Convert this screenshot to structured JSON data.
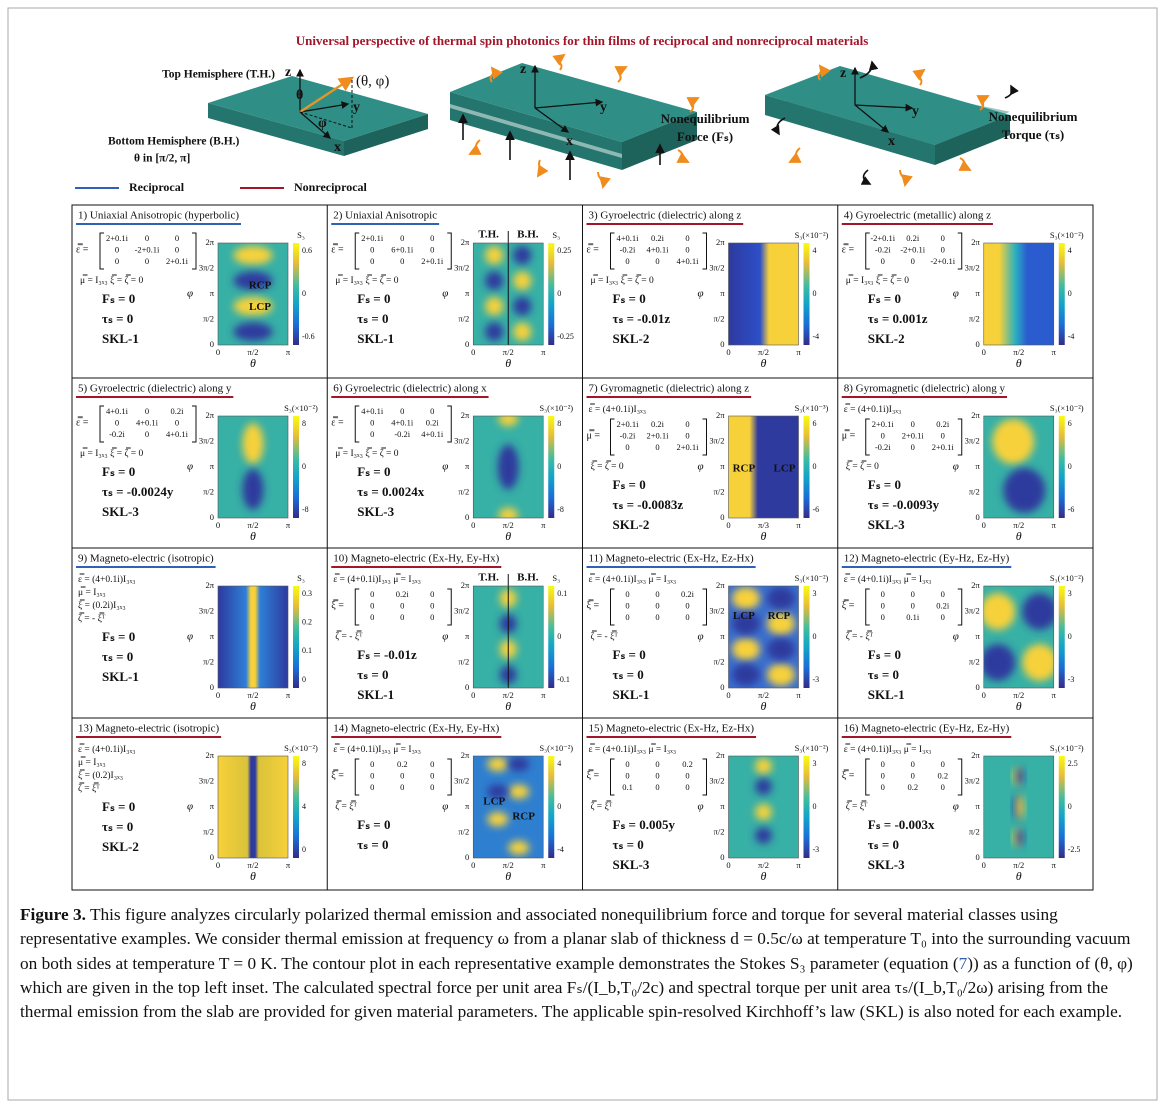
{
  "title": "Universal perspective of thermal spin photonics for thin films of reciprocal and nonreciprocal materials",
  "illustration": {
    "top_hemisphere": "Top Hemisphere (T.H.)",
    "bottom_hemisphere": "Bottom Hemisphere (B.H.)",
    "theta_range": "θ in [π/2, π]",
    "axis_z": "z",
    "axis_y": "y",
    "axis_x": "x",
    "theta": "θ",
    "phi": "φ",
    "direction": "(θ, φ)",
    "force_1": "Nonequilibrium",
    "force_2": "Force (Fₛ)",
    "torque_1": "Nonequilibrium",
    "torque_2": "Torque (τₛ)"
  },
  "legend": [
    {
      "name": "Reciprocal",
      "color": "#2f62b4"
    },
    {
      "name": "Nonreciprocal",
      "color": "#a3162a"
    }
  ],
  "panels": [
    {
      "title": "1) Uniaxial Anisotropic (hyperbolic)",
      "underline_color": "#2f62b4",
      "matrix": {
        "lhs": "ε̿ =",
        "rows": [
          [
            "2+0.1i",
            "0",
            "0"
          ],
          [
            "0",
            "-2+0.1i",
            "0"
          ],
          [
            "0",
            "0",
            "2+0.1i"
          ]
        ]
      },
      "post": [
        "μ̿ = I₃ₓ₃   ξ̿ = ζ̿ = 0"
      ],
      "results": [
        "Fₛ = 0",
        "τₛ = 0",
        "SKL-1"
      ],
      "plot": {
        "cbar_label": "S₃",
        "cbar_ticks": [
          "0.6",
          "0",
          "-0.6"
        ],
        "xticks": [
          "0",
          "π/2",
          "π"
        ],
        "yticks": [
          "0",
          "π/2",
          "π",
          "3π/2",
          "2π"
        ],
        "xlabel": "θ",
        "ylabel": "φ",
        "annotations": [
          "RCP",
          "LCP"
        ]
      }
    },
    {
      "title": "2) Uniaxial Anisotropic",
      "underline_color": "#2f62b4",
      "matrix": {
        "lhs": "ε̿ =",
        "rows": [
          [
            "2+0.1i",
            "0",
            "0"
          ],
          [
            "0",
            "6+0.1i",
            "0"
          ],
          [
            "0",
            "0",
            "2+0.1i"
          ]
        ]
      },
      "post": [
        "μ̿ = I₃ₓ₃   ξ̿ = ζ̿ = 0"
      ],
      "results": [
        "Fₛ = 0",
        "τₛ = 0",
        "SKL-1"
      ],
      "plot": {
        "cbar_label": "S₃",
        "cbar_ticks": [
          "0.25",
          "0",
          "-0.25"
        ],
        "xticks": [
          "0",
          "π/2",
          "π"
        ],
        "yticks": [
          "0",
          "π/2",
          "π",
          "3π/2",
          "2π"
        ],
        "xlabel": "θ",
        "ylabel": "φ",
        "annotations": [
          "T.H.",
          "B.H."
        ]
      }
    },
    {
      "title": "3) Gyroelectric (dielectric) along z",
      "underline_color": "#a3162a",
      "matrix": {
        "lhs": "ε̿ =",
        "rows": [
          [
            "4+0.1i",
            "0.2i",
            "0"
          ],
          [
            "-0.2i",
            "4+0.1i",
            "0"
          ],
          [
            "0",
            "0",
            "4+0.1i"
          ]
        ]
      },
      "post": [
        "μ̿ = I₃ₓ₃   ξ̿ = ζ̿ = 0"
      ],
      "results": [
        "Fₛ = 0",
        "τₛ = -0.01z",
        "SKL-2"
      ],
      "plot": {
        "cbar_label": "S₃(×10⁻²)",
        "cbar_ticks": [
          "4",
          "0",
          "-4"
        ],
        "xticks": [
          "0",
          "π/2",
          "π"
        ],
        "yticks": [
          "0",
          "π/2",
          "π",
          "3π/2",
          "2π"
        ],
        "xlabel": "θ",
        "ylabel": "φ",
        "annotations": []
      }
    },
    {
      "title": "4) Gyroelectric (metallic) along z",
      "underline_color": "#a3162a",
      "matrix": {
        "lhs": "ε̿ =",
        "rows": [
          [
            "-2+0.1i",
            "0.2i",
            "0"
          ],
          [
            "-0.2i",
            "-2+0.1i",
            "0"
          ],
          [
            "0",
            "0",
            "-2+0.1i"
          ]
        ]
      },
      "post": [
        "μ̿ = I₃ₓ₃   ξ̿ = ζ̿ = 0"
      ],
      "results": [
        "Fₛ = 0",
        "τₛ = 0.001z",
        "SKL-2"
      ],
      "plot": {
        "cbar_label": "S₃(×10⁻²)",
        "cbar_ticks": [
          "4",
          "0",
          "-4"
        ],
        "xticks": [
          "0",
          "π/2",
          "π"
        ],
        "yticks": [
          "0",
          "π/2",
          "π",
          "3π/2",
          "2π"
        ],
        "xlabel": "θ",
        "ylabel": "φ",
        "annotations": []
      }
    },
    {
      "title": "5) Gyroelectric (dielectric) along y",
      "underline_color": "#a3162a",
      "matrix": {
        "lhs": "ε̿ =",
        "rows": [
          [
            "4+0.1i",
            "0",
            "0.2i"
          ],
          [
            "0",
            "4+0.1i",
            "0"
          ],
          [
            "-0.2i",
            "0",
            "4+0.1i"
          ]
        ]
      },
      "post": [
        "μ̿ = I₃ₓ₃   ξ̿ = ζ̿ = 0"
      ],
      "results": [
        "Fₛ = 0",
        "τₛ = -0.0024y",
        "SKL-3"
      ],
      "plot": {
        "cbar_label": "S₃(×10⁻²)",
        "cbar_ticks": [
          "8",
          "0",
          "-8"
        ],
        "xticks": [
          "0",
          "π/2",
          "π"
        ],
        "yticks": [
          "0",
          "π/2",
          "π",
          "3π/2",
          "2π"
        ],
        "xlabel": "θ",
        "ylabel": "φ",
        "annotations": []
      }
    },
    {
      "title": "6) Gyroelectric (dielectric) along x",
      "underline_color": "#a3162a",
      "matrix": {
        "lhs": "ε̿ =",
        "rows": [
          [
            "4+0.1i",
            "0",
            "0"
          ],
          [
            "0",
            "4+0.1i",
            "0.2i"
          ],
          [
            "0",
            "-0.2i",
            "4+0.1i"
          ]
        ]
      },
      "post": [
        "μ̿ = I₃ₓ₃   ξ̿ = ζ̿ = 0"
      ],
      "results": [
        "Fₛ = 0",
        "τₛ = 0.0024x",
        "SKL-3"
      ],
      "plot": {
        "cbar_label": "S₃(×10⁻²)",
        "cbar_ticks": [
          "8",
          "0",
          "-8"
        ],
        "xticks": [
          "0",
          "π/2",
          "π"
        ],
        "yticks": [
          "0",
          "π/2",
          "π",
          "3π/2",
          "2π"
        ],
        "xlabel": "θ",
        "ylabel": "φ",
        "annotations": []
      }
    },
    {
      "title": "7) Gyromagnetic (dielectric) along z",
      "underline_color": "#a3162a",
      "pre": [
        "ε̿ = (4+0.1i)I₃ₓ₃"
      ],
      "matrix": {
        "lhs": "μ̿ =",
        "rows": [
          [
            "2+0.1i",
            "0.2i",
            "0"
          ],
          [
            "-0.2i",
            "2+0.1i",
            "0"
          ],
          [
            "0",
            "0",
            "2+0.1i"
          ]
        ]
      },
      "post": [
        "ξ̿ = ζ̿ = 0"
      ],
      "results": [
        "Fₛ = 0",
        "τₛ = -0.0083z",
        "SKL-2"
      ],
      "plot": {
        "cbar_label": "S₃(×10⁻³)",
        "cbar_ticks": [
          "6",
          "0",
          "-6"
        ],
        "xticks": [
          "0",
          "π/3",
          "π"
        ],
        "yticks": [
          "0",
          "π/2",
          "π",
          "3π/2",
          "2π"
        ],
        "xlabel": "θ",
        "ylabel": "φ",
        "annotations": [
          "RCP",
          "LCP"
        ]
      }
    },
    {
      "title": "8) Gyromagnetic (dielectric) along y",
      "underline_color": "#a3162a",
      "pre": [
        "ε̿ = (4+0.1i)I₃ₓ₃"
      ],
      "matrix": {
        "lhs": "μ̿ =",
        "rows": [
          [
            "2+0.1i",
            "0",
            "0.2i"
          ],
          [
            "0",
            "2+0.1i",
            "0"
          ],
          [
            "-0.2i",
            "0",
            "2+0.1i"
          ]
        ]
      },
      "post": [
        "ξ̿ = ζ̿ = 0"
      ],
      "results": [
        "Fₛ = 0",
        "τₛ = -0.0093y",
        "SKL-3"
      ],
      "plot": {
        "cbar_label": "S₃(×10⁻²)",
        "cbar_ticks": [
          "6",
          "0",
          "-6"
        ],
        "xticks": [
          "0",
          "π/2",
          "π"
        ],
        "yticks": [
          "0",
          "π/2",
          "π",
          "3π/2",
          "2π"
        ],
        "xlabel": "θ",
        "ylabel": "φ",
        "annotations": []
      }
    },
    {
      "title": "9) Magneto-electric (isotropic)",
      "underline_color": "#2f62b4",
      "pre": [
        "ε̿ = (4+0.1i)I₃ₓ₃",
        "μ̿ = I₃ₓ₃",
        "ξ̿ = (0.2i)I₃ₓ₃",
        "ζ̿ = - ξ̿ᵀ"
      ],
      "results": [
        "Fₛ = 0",
        "τₛ = 0",
        "SKL-1"
      ],
      "plot": {
        "cbar_label": "S₃",
        "cbar_ticks": [
          "0.3",
          "0.2",
          "0.1",
          "0"
        ],
        "xticks": [
          "0",
          "π/2",
          "π"
        ],
        "yticks": [
          "0",
          "π/2",
          "π",
          "3π/2",
          "2π"
        ],
        "xlabel": "θ",
        "ylabel": "φ",
        "annotations": []
      }
    },
    {
      "title": "10) Magneto-electric (Ex-Hy, Ey-Hx)",
      "underline_color": "#a3162a",
      "pre": [
        "ε̿ = (4+0.1i)I₃ₓ₃   μ̿ = I₃ₓ₃"
      ],
      "matrix": {
        "lhs": "ξ̿ =",
        "rows": [
          [
            "0",
            "0.2i",
            "0"
          ],
          [
            "0",
            "0",
            "0"
          ],
          [
            "0",
            "0",
            "0"
          ]
        ]
      },
      "post": [
        "ζ̿ = - ξ̿ᵀ"
      ],
      "results": [
        "Fₛ = -0.01z",
        "τₛ = 0",
        "SKL-1"
      ],
      "plot": {
        "cbar_label": "S₃",
        "cbar_ticks": [
          "0.1",
          "0",
          "-0.1"
        ],
        "xticks": [
          "0",
          "π/2",
          "π"
        ],
        "yticks": [
          "0",
          "π/2",
          "π",
          "3π/2",
          "2π"
        ],
        "xlabel": "θ",
        "ylabel": "φ",
        "annotations": [
          "T.H.",
          "B.H."
        ]
      }
    },
    {
      "title": "11) Magneto-electric (Ex-Hz, Ez-Hx)",
      "underline_color": "#2f62b4",
      "pre": [
        "ε̿ = (4+0.1i)I₃ₓ₃   μ̿ = I₃ₓ₃"
      ],
      "matrix": {
        "lhs": "ξ̿ =",
        "rows": [
          [
            "0",
            "0",
            "0.2i"
          ],
          [
            "0",
            "0",
            "0"
          ],
          [
            "0",
            "0",
            "0"
          ]
        ]
      },
      "post": [
        "ζ̿ = - ξ̿ᵀ"
      ],
      "results": [
        "Fₛ = 0",
        "τₛ = 0",
        "SKL-1"
      ],
      "plot": {
        "cbar_label": "S₃(×10⁻²)",
        "cbar_ticks": [
          "3",
          "0",
          "-3"
        ],
        "xticks": [
          "0",
          "π/2",
          "π"
        ],
        "yticks": [
          "0",
          "π/2",
          "π",
          "3π/2",
          "2π"
        ],
        "xlabel": "θ",
        "ylabel": "φ",
        "annotations": [
          "LCP",
          "RCP"
        ]
      }
    },
    {
      "title": "12) Magneto-electric (Ey-Hz, Ez-Hy)",
      "underline_color": "#2f62b4",
      "pre": [
        "ε̿ = (4+0.1i)I₃ₓ₃   μ̿ = I₃ₓ₃"
      ],
      "matrix": {
        "lhs": "ξ̿ =",
        "rows": [
          [
            "0",
            "0",
            "0"
          ],
          [
            "0",
            "0",
            "0.2i"
          ],
          [
            "0",
            "0.1i",
            "0"
          ]
        ]
      },
      "post": [
        "ζ̿ = - ξ̿ᵀ"
      ],
      "results": [
        "Fₛ = 0",
        "τₛ = 0",
        "SKL-1"
      ],
      "plot": {
        "cbar_label": "S₃(×10⁻²)",
        "cbar_ticks": [
          "3",
          "0",
          "-3"
        ],
        "xticks": [
          "0",
          "π/2",
          "π"
        ],
        "yticks": [
          "0",
          "π/2",
          "π",
          "3π/2",
          "2π"
        ],
        "xlabel": "θ",
        "ylabel": "φ",
        "annotations": []
      }
    },
    {
      "title": "13) Magneto-electric (isotropic)",
      "underline_color": "#a3162a",
      "pre": [
        "ε̿ = (4+0.1i)I₃ₓ₃",
        "μ̿ = I₃ₓ₃",
        "ξ̿ = (0.2)I₃ₓ₃",
        "ζ̿ = ξ̿ᵀ"
      ],
      "results": [
        "Fₛ = 0",
        "τₛ = 0",
        "SKL-2"
      ],
      "plot": {
        "cbar_label": "S₃(×10⁻²)",
        "cbar_ticks": [
          "8",
          "4",
          "0"
        ],
        "xticks": [
          "0",
          "π/2",
          "π"
        ],
        "yticks": [
          "0",
          "π/2",
          "π",
          "3π/2",
          "2π"
        ],
        "xlabel": "θ",
        "ylabel": "φ",
        "annotations": []
      }
    },
    {
      "title": "14) Magneto-electric (Ex-Hy, Ey-Hx)",
      "underline_color": "#a3162a",
      "pre": [
        "ε̿ = (4+0.1i)I₃ₓ₃   μ̿ = I₃ₓ₃"
      ],
      "matrix": {
        "lhs": "ξ̿ =",
        "rows": [
          [
            "0",
            "0.2",
            "0"
          ],
          [
            "0",
            "0",
            "0"
          ],
          [
            "0",
            "0",
            "0"
          ]
        ]
      },
      "post": [
        "ζ̿ = ξ̿ᵀ"
      ],
      "results": [
        "Fₛ = 0",
        "τₛ = 0"
      ],
      "plot": {
        "cbar_label": "S₃(×10⁻²)",
        "cbar_ticks": [
          "4",
          "0",
          "-4"
        ],
        "xticks": [
          "0",
          "π/2",
          "π"
        ],
        "yticks": [
          "0",
          "π/2",
          "π",
          "3π/2",
          "2π"
        ],
        "xlabel": "θ",
        "ylabel": "φ",
        "annotations": [
          "LCP",
          "RCP"
        ]
      }
    },
    {
      "title": "15) Magneto-electric (Ex-Hz, Ez-Hx)",
      "underline_color": "#a3162a",
      "pre": [
        "ε̿ = (4+0.1i)I₃ₓ₃   μ̿ = I₃ₓ₃"
      ],
      "matrix": {
        "lhs": "ξ̿ =",
        "rows": [
          [
            "0",
            "0",
            "0.2"
          ],
          [
            "0",
            "0",
            "0"
          ],
          [
            "0.1",
            "0",
            "0"
          ]
        ]
      },
      "post": [
        "ζ̿ = ξ̿ᵀ"
      ],
      "results": [
        "Fₛ = 0.005y",
        "τₛ = 0",
        "SKL-3"
      ],
      "plot": {
        "cbar_label": "S₃(×10⁻²)",
        "cbar_ticks": [
          "3",
          "0",
          "-3"
        ],
        "xticks": [
          "0",
          "π/2",
          "π"
        ],
        "yticks": [
          "0",
          "π/2",
          "π",
          "3π/2",
          "2π"
        ],
        "xlabel": "θ",
        "ylabel": "φ",
        "annotations": []
      }
    },
    {
      "title": "16) Magneto-electric (Ey-Hz, Ez-Hy)",
      "underline_color": "#a3162a",
      "pre": [
        "ε̿ = (4+0.1i)I₃ₓ₃   μ̿ = I₃ₓ₃"
      ],
      "matrix": {
        "lhs": "ξ̿ =",
        "rows": [
          [
            "0",
            "0",
            "0"
          ],
          [
            "0",
            "0",
            "0.2"
          ],
          [
            "0",
            "0.2",
            "0"
          ]
        ]
      },
      "post": [
        "ζ̿ = ξ̿ᵀ"
      ],
      "results": [
        "Fₛ = -0.003x",
        "τₛ = 0",
        "SKL-3"
      ],
      "plot": {
        "cbar_label": "S₃(×10⁻²)",
        "cbar_ticks": [
          "2.5",
          "0",
          "-2.5"
        ],
        "xticks": [
          "0",
          "π/2",
          "π"
        ],
        "yticks": [
          "0",
          "π/2",
          "π",
          "3π/2",
          "2π"
        ],
        "xlabel": "θ",
        "ylabel": "φ",
        "annotations": []
      }
    }
  ],
  "caption": {
    "label": "Figure 3.",
    "text_1": "This figure analyzes circularly polarized thermal emission and associated nonequilibrium force and torque for several material classes using representative examples. We consider thermal emission at frequency ω from a planar slab of thickness d = 0.5c/ω at temperature T₀ into the surrounding vacuum on both sides at temperature T = 0 K. The contour plot in each representative example demonstrates the Stokes S₃ parameter (equation (",
    "ref": "7",
    "text_2": ")) as a function of (θ, φ) which are given in the top left inset. The calculated spectral force per unit area Fₛ/(I_b,T₀/2c) and spectral torque per unit area τₛ/(I_b,T₀/2ω) arising from the thermal emission from the slab are provided for given material parameters. The applicable spin-resolved Kirchhoff’s law (SKL) is also noted for each example."
  }
}
